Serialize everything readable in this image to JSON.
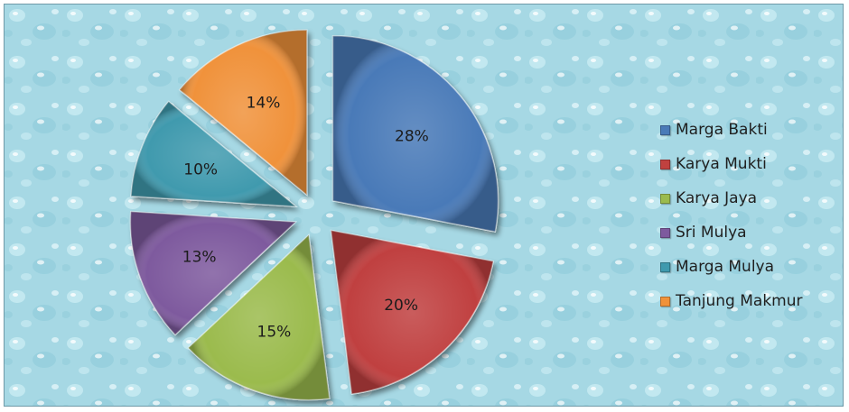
{
  "chart_data": {
    "type": "pie",
    "exploded": true,
    "categories": [
      "Marga Bakti",
      "Karya Mukti",
      "Karya Jaya",
      "Sri Mulya",
      "Marga Mulya",
      "Tanjung Makmur"
    ],
    "values": [
      28,
      20,
      15,
      13,
      10,
      14
    ],
    "labels": [
      "28%",
      "20%",
      "15%",
      "13%",
      "10%",
      "14%"
    ],
    "colors": [
      "#4a7ab8",
      "#c0413f",
      "#9bbb4d",
      "#7e5a9e",
      "#3f9aae",
      "#f0923a"
    ],
    "legend_position": "right",
    "start_angle_deg": 0,
    "direction": "clockwise"
  },
  "legend": {
    "items": [
      {
        "label": "Marga Bakti",
        "color": "#4a7ab8"
      },
      {
        "label": "Karya Mukti",
        "color": "#c0413f"
      },
      {
        "label": "Karya Jaya",
        "color": "#9bbb4d"
      },
      {
        "label": "Sri Mulya",
        "color": "#7e5a9e"
      },
      {
        "label": "Marga Mulya",
        "color": "#3f9aae"
      },
      {
        "label": "Tanjung Makmur",
        "color": "#f0923a"
      }
    ]
  }
}
